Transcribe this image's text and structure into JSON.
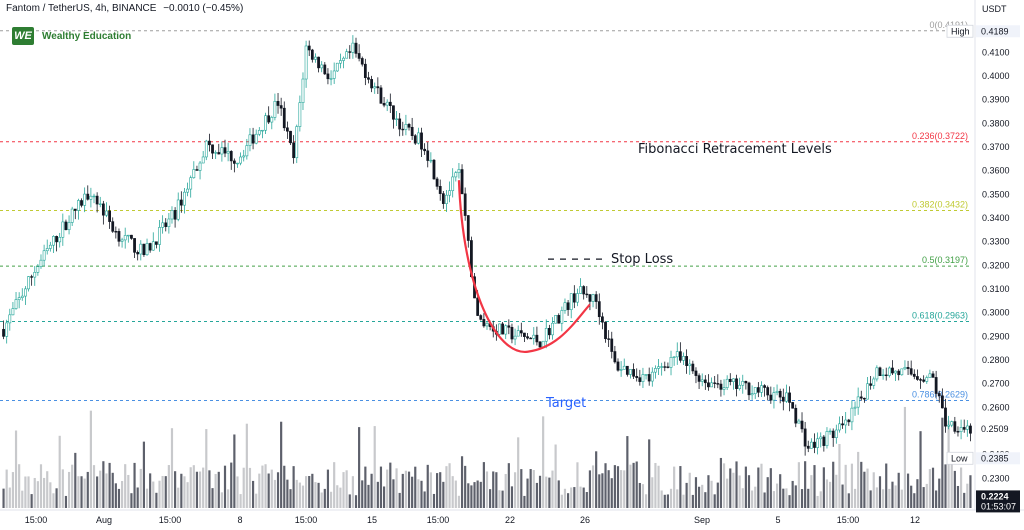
{
  "header": {
    "symbol": "Fantom / TetherUS, 4h, BINANCE",
    "change": "−0.0010 (−0.45%)"
  },
  "brand": {
    "logo": "WE",
    "name": "Wealthy Education"
  },
  "currency": "USDT",
  "colors": {
    "up": "#26a69a",
    "down": "#131722",
    "volume_up": "#c8c9cc",
    "volume_down": "#5d606b",
    "fib_0": "#9e9e9e",
    "fib_236": "#f23645",
    "fib_382": "#c0ca33",
    "fib_5": "#43a047",
    "fib_618": "#26a69a",
    "fib_786": "#4a90e2",
    "cup": "#f23645",
    "target_text": "#2962ff"
  },
  "chart_data": {
    "type": "candlestick",
    "title": "Fantom / TetherUS, 4h, BINANCE",
    "y_axis": {
      "unit": "USDT",
      "range": [
        0.2175,
        0.4245
      ],
      "ticks": [
        "0.4100",
        "0.4000",
        "0.3900",
        "0.3800",
        "0.3700",
        "0.3600",
        "0.3500",
        "0.3400",
        "0.3300",
        "0.3200",
        "0.3100",
        "0.3000",
        "0.2900",
        "0.2800",
        "0.2700",
        "0.2600",
        "0.2500",
        "0.2400",
        "0.2300"
      ]
    },
    "x_axis": {
      "ticks": [
        "15:00",
        "Aug",
        "15:00",
        "8",
        "15:00",
        "15",
        "15:00",
        "22",
        "26",
        "Sep",
        "5",
        "15:00",
        "12"
      ]
    },
    "price_path": [
      {
        "i": 0,
        "p": 0.293
      },
      {
        "i": 10,
        "p": 0.318
      },
      {
        "i": 20,
        "p": 0.338
      },
      {
        "i": 28,
        "p": 0.352
      },
      {
        "i": 36,
        "p": 0.334
      },
      {
        "i": 45,
        "p": 0.325
      },
      {
        "i": 55,
        "p": 0.342
      },
      {
        "i": 65,
        "p": 0.371
      },
      {
        "i": 75,
        "p": 0.365
      },
      {
        "i": 88,
        "p": 0.389
      },
      {
        "i": 93,
        "p": 0.365
      },
      {
        "i": 97,
        "p": 0.412
      },
      {
        "i": 105,
        "p": 0.399
      },
      {
        "i": 112,
        "p": 0.411
      },
      {
        "i": 120,
        "p": 0.393
      },
      {
        "i": 128,
        "p": 0.378
      },
      {
        "i": 135,
        "p": 0.371
      },
      {
        "i": 141,
        "p": 0.348
      },
      {
        "i": 146,
        "p": 0.359
      },
      {
        "i": 152,
        "p": 0.297
      },
      {
        "i": 160,
        "p": 0.292
      },
      {
        "i": 172,
        "p": 0.288
      },
      {
        "i": 184,
        "p": 0.309
      },
      {
        "i": 190,
        "p": 0.305
      },
      {
        "i": 196,
        "p": 0.278
      },
      {
        "i": 207,
        "p": 0.272
      },
      {
        "i": 215,
        "p": 0.282
      },
      {
        "i": 225,
        "p": 0.271
      },
      {
        "i": 240,
        "p": 0.268
      },
      {
        "i": 252,
        "p": 0.263
      },
      {
        "i": 258,
        "p": 0.243
      },
      {
        "i": 270,
        "p": 0.252
      },
      {
        "i": 280,
        "p": 0.276
      },
      {
        "i": 292,
        "p": 0.274
      },
      {
        "i": 298,
        "p": 0.272
      },
      {
        "i": 302,
        "p": 0.254
      },
      {
        "i": 310,
        "p": 0.251
      }
    ],
    "candle_count": 311,
    "high": {
      "label": "High",
      "value": "0.4189"
    },
    "low": {
      "label": "Low",
      "value": "0.2385"
    },
    "last": {
      "value": "0.2509"
    },
    "current": {
      "value": "0.2224",
      "countdown": "01:53:07"
    },
    "fib_levels": [
      {
        "ratio": "0",
        "price": 0.4191,
        "label": "0(0.4191)",
        "color_key": "fib_0"
      },
      {
        "ratio": "0.236",
        "price": 0.3722,
        "label": "0.236(0.3722)",
        "color_key": "fib_236"
      },
      {
        "ratio": "0.382",
        "price": 0.3432,
        "label": "0.382(0.3432)",
        "color_key": "fib_382"
      },
      {
        "ratio": "0.5",
        "price": 0.3197,
        "label": "0.5(0.3197)",
        "color_key": "fib_5"
      },
      {
        "ratio": "0.618",
        "price": 0.2963,
        "label": "0.618(0.2963)",
        "color_key": "fib_618"
      },
      {
        "ratio": "0.786",
        "price": 0.2629,
        "label": "0.786(0.2629)",
        "color_key": "fib_786"
      }
    ],
    "annotations": {
      "fib_title": "Fibonacci Retracement Levels",
      "stop_loss": "Stop Loss",
      "target": "Target"
    },
    "volume": {
      "overlay": "bottom"
    }
  }
}
